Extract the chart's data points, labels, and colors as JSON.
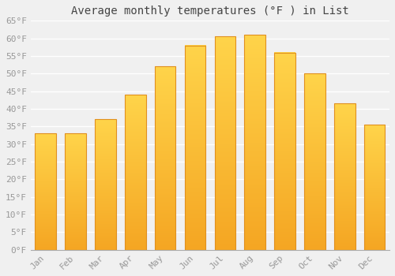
{
  "title": "Average monthly temperatures (°F ) in List",
  "months": [
    "Jan",
    "Feb",
    "Mar",
    "Apr",
    "May",
    "Jun",
    "Jul",
    "Aug",
    "Sep",
    "Oct",
    "Nov",
    "Dec"
  ],
  "values": [
    33,
    33,
    37,
    44,
    52,
    58,
    60.5,
    61,
    56,
    50,
    41.5,
    35.5
  ],
  "bar_color_top": "#FFD44A",
  "bar_color_bottom": "#F5A623",
  "bar_edge_color": "#E09020",
  "ylim": [
    0,
    65
  ],
  "yticks": [
    0,
    5,
    10,
    15,
    20,
    25,
    30,
    35,
    40,
    45,
    50,
    55,
    60,
    65
  ],
  "ytick_labels": [
    "0°F",
    "5°F",
    "10°F",
    "15°F",
    "20°F",
    "25°F",
    "30°F",
    "35°F",
    "40°F",
    "45°F",
    "50°F",
    "55°F",
    "60°F",
    "65°F"
  ],
  "background_color": "#f0f0f0",
  "grid_color": "#ffffff",
  "title_fontsize": 10,
  "tick_fontsize": 8,
  "tick_color": "#999999",
  "font_family": "monospace"
}
